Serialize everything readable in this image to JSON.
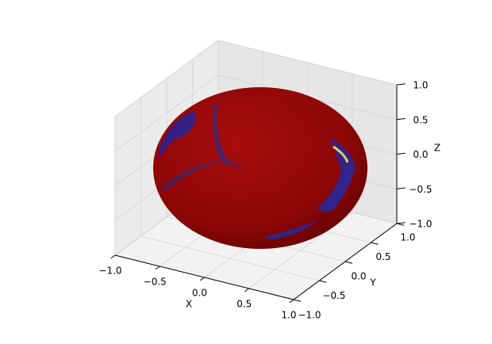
{
  "chart_data": {
    "type": "surface",
    "xlabel": "X",
    "ylabel": "Y",
    "zlabel": "Z",
    "xlim": [
      -1,
      1
    ],
    "ylim": [
      -1,
      1
    ],
    "zlim": [
      -1,
      1
    ],
    "xticks": [
      {
        "value": -1,
        "label": "−1.0"
      },
      {
        "value": -0.5,
        "label": "−0.5"
      },
      {
        "value": 0,
        "label": "0.0"
      },
      0.5,
      {
        "value": 1,
        "label": "1.0"
      }
    ],
    "yticks": [
      {
        "value": -1,
        "label": "−1.0"
      },
      {
        "value": -0.5,
        "label": "−0.5"
      },
      {
        "value": 0,
        "label": "0.0"
      },
      0.5,
      {
        "value": 1,
        "label": "1.0"
      }
    ],
    "zticks": [
      {
        "value": -1,
        "label": "−1.0"
      },
      {
        "value": -0.5,
        "label": "−0.5"
      },
      {
        "value": 0,
        "label": "0.0"
      },
      0.5,
      {
        "value": 1,
        "label": "1.0"
      }
    ],
    "grid": true
  }
}
